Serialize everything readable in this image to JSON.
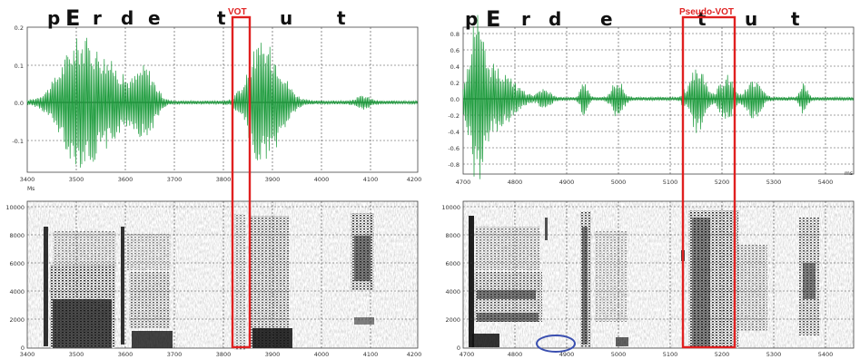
{
  "left": {
    "phones": [
      "p",
      "E",
      "r",
      "d",
      "e",
      "t",
      "u",
      "t"
    ],
    "annotation": "VOT",
    "annotation_color": "#e02020",
    "wave_color": "#1a9a3a",
    "wave_yticks": [
      "0.2",
      "0.1",
      "0.0",
      "-0.1"
    ],
    "wave_xticks": [
      "3400",
      "3500",
      "3600",
      "3700",
      "3800",
      "3900",
      "4000",
      "4100",
      "4200"
    ],
    "wave_unit": "Ms",
    "spec_yticks": [
      "10000",
      "8000",
      "6000",
      "4000",
      "2000",
      "0"
    ],
    "spec_xticks": [
      "3400",
      "3500",
      "3600",
      "3700",
      "3800",
      "3900",
      "4000",
      "4100",
      "4200"
    ]
  },
  "right": {
    "phones": [
      "p",
      "E",
      "r",
      "d",
      "e",
      "t",
      "u",
      "t"
    ],
    "annotation": "Pseudo-VOT",
    "annotation_color": "#e02020",
    "circle_color": "#3a4fb0",
    "wave_color": "#1a9a3a",
    "wave_yticks": [
      "0.8",
      "0.6",
      "0.4",
      "0.2",
      "0.0",
      "-0.2",
      "-0.4",
      "-0.6",
      "-0.8"
    ],
    "wave_xticks": [
      "4700",
      "4800",
      "4900",
      "5000",
      "5100",
      "5200",
      "5300",
      "5400"
    ],
    "wave_unit": "ms",
    "spec_yticks": [
      "10000",
      "8000",
      "6000",
      "4000",
      "2000",
      "0"
    ],
    "spec_xticks": [
      "4700",
      "4800",
      "4900",
      "5000",
      "5100",
      "5200",
      "5300",
      "5400"
    ]
  }
}
